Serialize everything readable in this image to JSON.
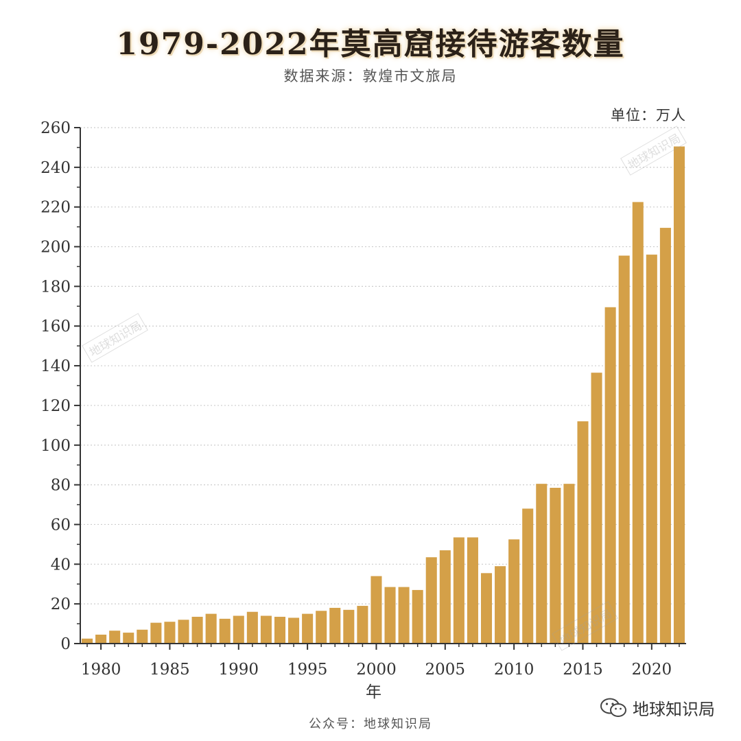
{
  "header": {
    "title": "1979-2022年莫高窟接待游客数量",
    "subtitle": "数据来源：敦煌市文旅局",
    "unit": "单位：万人"
  },
  "footer": {
    "account": "公众号：地球知识局",
    "brand": "地球知识局",
    "brand_icon": "wechat-icon"
  },
  "watermark": "地球知识局",
  "colors": {
    "bar": "#D4A048",
    "axis": "#333333",
    "grid": "#cccccc",
    "text": "#333333"
  },
  "chart_data": {
    "type": "bar",
    "title": "1979-2022年莫高窟接待游客数量",
    "subtitle": "数据来源：敦煌市文旅局",
    "unit": "单位：万人",
    "xlabel": "年",
    "ylabel": "",
    "ylim": [
      0,
      260
    ],
    "y_ticks": [
      0,
      20,
      40,
      60,
      80,
      100,
      120,
      140,
      160,
      180,
      200,
      220,
      240,
      260
    ],
    "x_ticks": [
      1980,
      1985,
      1990,
      1995,
      2000,
      2005,
      2010,
      2015,
      2020
    ],
    "grid": "horizontal dotted",
    "categories": [
      1979,
      1980,
      1981,
      1982,
      1983,
      1984,
      1985,
      1986,
      1987,
      1988,
      1989,
      1990,
      1991,
      1992,
      1993,
      1994,
      1995,
      1996,
      1997,
      1998,
      1999,
      2000,
      2001,
      2002,
      2003,
      2004,
      2005,
      2006,
      2007,
      2008,
      2009,
      2010,
      2011,
      2012,
      2013,
      2014,
      2015,
      2016,
      2017,
      2018,
      2019,
      2020,
      2021,
      2022
    ],
    "values": [
      2.5,
      4.5,
      6.5,
      5.5,
      7,
      10.5,
      11,
      12,
      13.5,
      15,
      12.5,
      14,
      16,
      14,
      13.5,
      13,
      15,
      16.5,
      18,
      17,
      19,
      34,
      28.5,
      28.5,
      27,
      43.5,
      47,
      53.5,
      53.5,
      35.5,
      39,
      52.5,
      68,
      80.5,
      78.5,
      80.5,
      112,
      136.5,
      169.5,
      195.5,
      222.5,
      196,
      209.5,
      250.5
    ]
  }
}
